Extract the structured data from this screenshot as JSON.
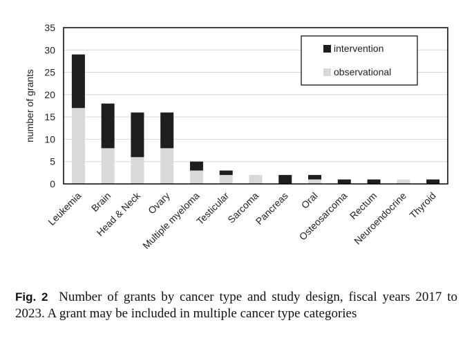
{
  "chart_data": {
    "type": "bar",
    "stacked": true,
    "categories": [
      "Leukemia",
      "Brain",
      "Head & Neck",
      "Ovary",
      "Multiple myeloma",
      "Testicular",
      "Sarcoma",
      "Pancreas",
      "Oral",
      "Osteosarcoma",
      "Rectum",
      "Neuroendocrine",
      "Thyroid"
    ],
    "series": [
      {
        "name": "observational",
        "color": "#d9d9d9",
        "values": [
          17,
          8,
          6,
          8,
          3,
          2,
          2,
          0,
          1,
          0,
          0,
          1,
          0
        ]
      },
      {
        "name": "intervention",
        "color": "#1e1e1e",
        "values": [
          12,
          10,
          10,
          8,
          2,
          1,
          0,
          2,
          1,
          1,
          1,
          0,
          1
        ]
      }
    ],
    "ylabel": "number of grants",
    "ylim": [
      0,
      35
    ],
    "yticks": [
      0,
      5,
      10,
      15,
      20,
      25,
      30,
      35
    ],
    "grid": true,
    "legend_position": "top-right",
    "legend_order": [
      "intervention",
      "observational"
    ]
  },
  "caption": {
    "label": "Fig. 2",
    "text": "Number of grants by cancer type and study design, fiscal years 2017 to 2023. A grant may be included in multiple cancer type categories"
  }
}
